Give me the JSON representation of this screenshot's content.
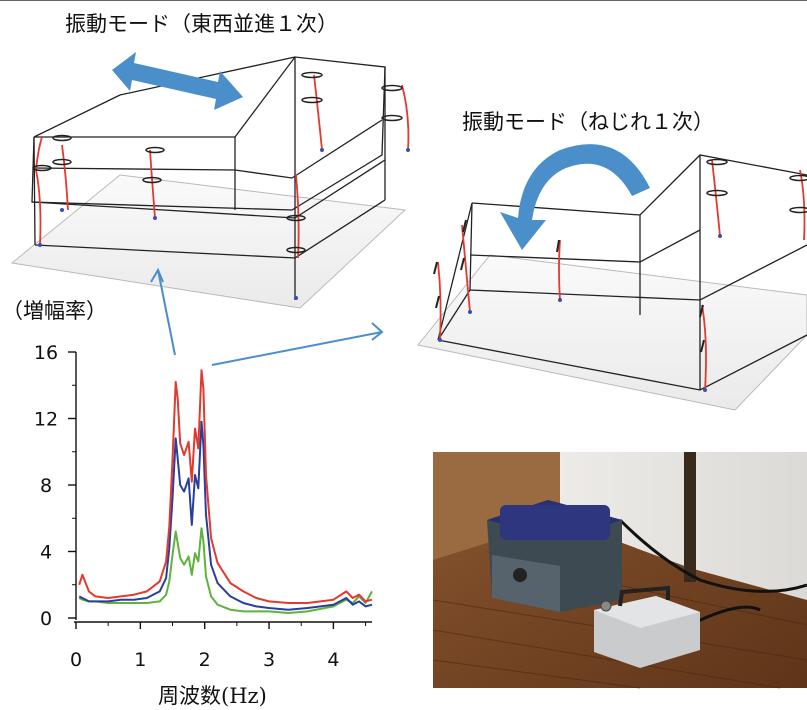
{
  "labels": {
    "mode_ew": "振動モード（東西並進１次）",
    "mode_torsion": "振動モード（ねじれ１次）",
    "y_axis": "（増幅率）",
    "x_axis": "周波数(Hz)"
  },
  "colors": {
    "red": "#e23a2e",
    "blue": "#2a3f9c",
    "green": "#5db33d",
    "arrow": "#4a8fc9",
    "frame": "#222222"
  },
  "chart_data": {
    "type": "line",
    "title": "",
    "xlabel": "周波数(Hz)",
    "ylabel": "（増幅率）",
    "xlim": [
      0,
      4.6
    ],
    "ylim": [
      0,
      16
    ],
    "xticks": [
      0,
      1,
      2,
      3,
      4
    ],
    "yticks": [
      0,
      4,
      8,
      12,
      16
    ],
    "series": [
      {
        "color": "#e23a2e",
        "x": [
          0.05,
          0.1,
          0.2,
          0.3,
          0.5,
          0.7,
          0.9,
          1.1,
          1.3,
          1.4,
          1.45,
          1.5,
          1.55,
          1.58,
          1.62,
          1.68,
          1.75,
          1.8,
          1.85,
          1.9,
          1.95,
          1.98,
          2.02,
          2.1,
          2.2,
          2.4,
          2.6,
          2.8,
          3.0,
          3.3,
          3.6,
          4.0,
          4.2,
          4.3,
          4.4,
          4.5,
          4.6
        ],
        "y": [
          2.0,
          2.6,
          1.6,
          1.3,
          1.2,
          1.3,
          1.4,
          1.6,
          2.2,
          3.4,
          5.5,
          9.5,
          14.2,
          13.2,
          10.5,
          9.8,
          10.6,
          8.2,
          11.4,
          10.2,
          14.9,
          13.8,
          8.6,
          4.8,
          3.3,
          2.1,
          1.6,
          1.2,
          1.0,
          0.9,
          0.9,
          1.1,
          1.6,
          1.2,
          1.4,
          1.0,
          1.1
        ]
      },
      {
        "color": "#2a3f9c",
        "x": [
          0.05,
          0.1,
          0.2,
          0.3,
          0.5,
          0.7,
          0.9,
          1.1,
          1.3,
          1.4,
          1.45,
          1.5,
          1.55,
          1.58,
          1.62,
          1.68,
          1.75,
          1.8,
          1.85,
          1.9,
          1.95,
          1.98,
          2.02,
          2.1,
          2.2,
          2.4,
          2.6,
          2.8,
          3.0,
          3.3,
          3.6,
          4.0,
          4.2,
          4.3,
          4.4,
          4.5,
          4.6
        ],
        "y": [
          1.3,
          1.2,
          1.0,
          1.0,
          1.0,
          1.1,
          1.1,
          1.2,
          1.6,
          2.4,
          4.2,
          7.2,
          10.8,
          9.6,
          8.0,
          7.6,
          8.4,
          5.6,
          8.6,
          7.8,
          11.8,
          10.4,
          6.2,
          3.2,
          2.1,
          1.3,
          0.9,
          0.7,
          0.6,
          0.5,
          0.6,
          0.8,
          1.2,
          0.8,
          1.0,
          0.7,
          0.8
        ]
      },
      {
        "color": "#5db33d",
        "x": [
          0.05,
          0.1,
          0.2,
          0.3,
          0.5,
          0.7,
          0.9,
          1.1,
          1.3,
          1.4,
          1.45,
          1.5,
          1.55,
          1.58,
          1.62,
          1.68,
          1.75,
          1.8,
          1.85,
          1.9,
          1.95,
          1.98,
          2.02,
          2.1,
          2.2,
          2.4,
          2.6,
          2.8,
          3.0,
          3.3,
          3.6,
          4.0,
          4.2,
          4.3,
          4.4,
          4.5,
          4.6
        ],
        "y": [
          1.2,
          1.1,
          1.0,
          1.0,
          0.9,
          0.9,
          0.9,
          0.9,
          1.0,
          1.4,
          2.2,
          3.8,
          5.2,
          4.5,
          3.6,
          3.2,
          3.7,
          2.6,
          3.9,
          3.4,
          5.4,
          4.6,
          2.5,
          1.3,
          0.8,
          0.5,
          0.4,
          0.4,
          0.4,
          0.3,
          0.4,
          0.7,
          1.1,
          0.9,
          1.3,
          0.9,
          1.6
        ]
      }
    ]
  }
}
